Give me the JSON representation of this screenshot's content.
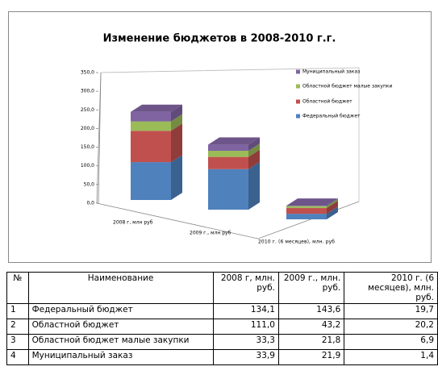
{
  "chart_data": {
    "type": "bar3d-stacked",
    "title": "Изменение бюджетов в 2008-2010 г.г.",
    "categories": [
      "2008 г, млн руб",
      "2009 г., млн руб",
      "2010 г. (6 месяцев), млн. руб"
    ],
    "series": [
      {
        "name": "Федеральный бюджет",
        "color": "#4f81bd",
        "values": [
          134.1,
          143.6,
          19.7
        ]
      },
      {
        "name": "Областной бюджет",
        "color": "#c0504d",
        "values": [
          111.0,
          43.2,
          20.2
        ]
      },
      {
        "name": "Областной бюджет малые закупки",
        "color": "#9bbb59",
        "values": [
          33.3,
          21.8,
          6.9
        ]
      },
      {
        "name": "Муниципальный заказ",
        "color": "#8064a2",
        "values": [
          33.9,
          21.9,
          1.4
        ]
      }
    ],
    "ylim": [
      0,
      350
    ],
    "yticks": [
      {
        "value": 0,
        "label": "0,0"
      },
      {
        "value": 50,
        "label": "50,0"
      },
      {
        "value": 100,
        "label": "100,0"
      },
      {
        "value": 150,
        "label": "150,0"
      },
      {
        "value": 200,
        "label": "200,0"
      },
      {
        "value": 250,
        "label": "250,0"
      },
      {
        "value": 300,
        "label": "300,0"
      },
      {
        "value": 350,
        "label": "350,0"
      }
    ],
    "legend": "right"
  },
  "table": {
    "header": [
      "№",
      "Наименование",
      "2008 г, млн. руб.",
      "2009 г., млн. руб.",
      "2010 г. (6 месяцев), млн. руб."
    ],
    "rows": [
      [
        "1",
        "Федеральный бюджет",
        "134,1",
        "143,6",
        "19,7"
      ],
      [
        "2",
        "Областной бюджет",
        "111,0",
        "43,2",
        "20,2"
      ],
      [
        "3",
        "Областной бюджет малые закупки",
        "33,3",
        "21,8",
        "6,9"
      ],
      [
        "4",
        "Муниципальный заказ",
        "33,9",
        "21,9",
        "1,4"
      ]
    ]
  }
}
